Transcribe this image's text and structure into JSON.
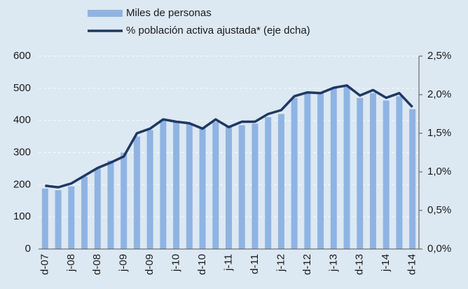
{
  "chart_data": {
    "type": "bar_line",
    "categories": [
      "d-07",
      null,
      "j-08",
      null,
      "d-08",
      null,
      "j-09",
      null,
      "d-09",
      null,
      "j-10",
      null,
      "d-10",
      null,
      "j-11",
      null,
      "d-11",
      null,
      "j-12",
      null,
      "d-12",
      null,
      "j-13",
      null,
      "d-13",
      null,
      "j-14",
      null,
      "d-14"
    ],
    "series": [
      {
        "name": "Miles de personas",
        "type": "bar",
        "color": "#8fb4e3",
        "axis": "y",
        "values": [
          188,
          183,
          195,
          225,
          250,
          275,
          300,
          350,
          370,
          400,
          395,
          390,
          375,
          395,
          380,
          385,
          390,
          410,
          420,
          470,
          485,
          485,
          500,
          505,
          470,
          485,
          462,
          475,
          435
        ]
      },
      {
        "name": "% población activa ajustada* (eje dcha)",
        "type": "line",
        "color": "#1f3864",
        "axis": "y2",
        "values": [
          0.82,
          0.8,
          0.85,
          0.95,
          1.05,
          1.12,
          1.2,
          1.5,
          1.56,
          1.68,
          1.65,
          1.63,
          1.56,
          1.68,
          1.58,
          1.65,
          1.65,
          1.75,
          1.8,
          1.98,
          2.03,
          2.02,
          2.09,
          2.12,
          1.99,
          2.06,
          1.96,
          2.02,
          1.84
        ]
      }
    ],
    "ylim": [
      0,
      600
    ],
    "yticks": [
      0,
      100,
      200,
      300,
      400,
      500,
      600
    ],
    "y2lim": [
      0,
      2.5
    ],
    "y2ticks": [
      {
        "value": 0,
        "label": "0,0%"
      },
      {
        "value": 0.5,
        "label": "0,5%"
      },
      {
        "value": 1,
        "label": "1,0%"
      },
      {
        "value": 1.5,
        "label": "1,5%"
      },
      {
        "value": 2,
        "label": "2,0%"
      },
      {
        "value": 2.5,
        "label": "2,5%"
      }
    ],
    "grid": true
  }
}
